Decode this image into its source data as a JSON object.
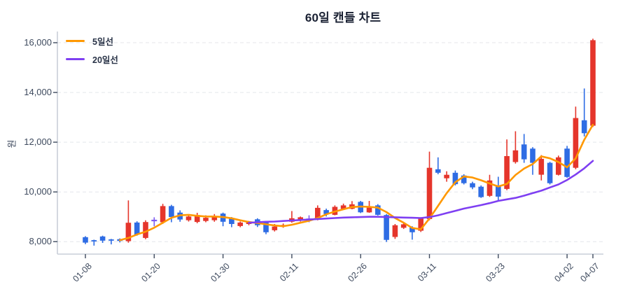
{
  "chart_data": {
    "type": "candlestick",
    "title": "60일 캔들 차트",
    "ylabel": "원",
    "grid": true,
    "legend_position": "upper-left",
    "ylim": [
      7500,
      16450
    ],
    "num_candles": 60,
    "ohlc_order": "open,high,low,close",
    "up_color": "#e5352b",
    "down_color": "#2e6ce4",
    "doji_color": "#7d5bf0",
    "axis_color": "#c9cfd9",
    "grid_color": "#e4e6ea",
    "tick_text_color": "#3e4a5e",
    "y_ticks": [
      {
        "value": 8000,
        "label": "8,000"
      },
      {
        "value": 10000,
        "label": "10,000"
      },
      {
        "value": 12000,
        "label": "12,000"
      },
      {
        "value": 14000,
        "label": "14,000"
      },
      {
        "value": 16000,
        "label": "16,000"
      }
    ],
    "x_ticks": [
      {
        "index": 0,
        "label": "01-08"
      },
      {
        "index": 8,
        "label": "01-20"
      },
      {
        "index": 16,
        "label": "01-30"
      },
      {
        "index": 24,
        "label": "02-11"
      },
      {
        "index": 32,
        "label": "02-26"
      },
      {
        "index": 40,
        "label": "03-11"
      },
      {
        "index": 48,
        "label": "03-23"
      },
      {
        "index": 56,
        "label": "04-02"
      },
      {
        "index": 59,
        "label": "04-07"
      }
    ],
    "candles": [
      [
        8180,
        8220,
        7900,
        7960
      ],
      [
        8060,
        8080,
        7840,
        8010
      ],
      [
        8210,
        8240,
        7950,
        8040
      ],
      [
        8090,
        8110,
        7890,
        8040
      ],
      [
        8100,
        8130,
        7970,
        8030
      ],
      [
        8020,
        9660,
        7960,
        8760
      ],
      [
        8770,
        8820,
        8240,
        8290
      ],
      [
        8150,
        8860,
        8100,
        8790
      ],
      [
        8850,
        8980,
        8620,
        8850
      ],
      [
        8780,
        9520,
        8720,
        9430
      ],
      [
        9430,
        9480,
        8780,
        8990
      ],
      [
        9170,
        9260,
        8800,
        8890
      ],
      [
        8860,
        9100,
        8810,
        9010
      ],
      [
        8790,
        9160,
        8740,
        9070
      ],
      [
        8830,
        9060,
        8780,
        8960
      ],
      [
        8860,
        9110,
        8800,
        9030
      ],
      [
        9130,
        9170,
        8620,
        8800
      ],
      [
        8930,
        8990,
        8580,
        8710
      ],
      [
        8630,
        8810,
        8580,
        8770
      ],
      [
        8710,
        8830,
        8660,
        8790
      ],
      [
        8900,
        8940,
        8590,
        8660
      ],
      [
        8790,
        8820,
        8300,
        8380
      ],
      [
        8460,
        8710,
        8410,
        8610
      ],
      [
        8610,
        8730,
        8560,
        8670
      ],
      [
        8800,
        9230,
        8760,
        8940
      ],
      [
        8860,
        9010,
        8810,
        8980
      ],
      [
        8900,
        9060,
        8780,
        8900
      ],
      [
        8890,
        9460,
        8860,
        9360
      ],
      [
        9270,
        9330,
        9010,
        9110
      ],
      [
        9080,
        9460,
        9060,
        9400
      ],
      [
        9320,
        9530,
        9290,
        9460
      ],
      [
        9320,
        9630,
        9300,
        9500
      ],
      [
        9600,
        9640,
        9150,
        9180
      ],
      [
        9180,
        9640,
        9160,
        9370
      ],
      [
        9460,
        9510,
        9050,
        9080
      ],
      [
        9070,
        9110,
        7990,
        8070
      ],
      [
        8190,
        8710,
        8110,
        8660
      ],
      [
        8560,
        8760,
        8510,
        8700
      ],
      [
        8570,
        8620,
        8080,
        8380
      ],
      [
        8440,
        8980,
        8390,
        8930
      ],
      [
        8910,
        11620,
        8860,
        10970
      ],
      [
        10910,
        11390,
        10710,
        10770
      ],
      [
        10550,
        10830,
        10410,
        10690
      ],
      [
        10770,
        10860,
        10260,
        10310
      ],
      [
        10660,
        10710,
        10300,
        10350
      ],
      [
        10350,
        10410,
        10110,
        10180
      ],
      [
        10210,
        10260,
        9760,
        9790
      ],
      [
        9840,
        10690,
        9800,
        10460
      ],
      [
        10260,
        10610,
        9660,
        9810
      ],
      [
        10120,
        12110,
        10070,
        11440
      ],
      [
        11200,
        12440,
        11140,
        11670
      ],
      [
        11910,
        12330,
        11170,
        11310
      ],
      [
        11740,
        11800,
        10690,
        11170
      ],
      [
        10690,
        11480,
        10460,
        11330
      ],
      [
        11170,
        11210,
        10300,
        10350
      ],
      [
        10690,
        11460,
        10660,
        11390
      ],
      [
        11740,
        11850,
        10570,
        10600
      ],
      [
        10970,
        13430,
        10910,
        12970
      ],
      [
        12880,
        14160,
        12230,
        12360
      ],
      [
        12660,
        16160,
        12610,
        16100
      ]
    ],
    "series": [
      {
        "name": "5일선",
        "type": "line",
        "color": "#ff9800",
        "start_index": 4,
        "values": [
          8060,
          8150,
          8290,
          8400,
          8560,
          8760,
          8960,
          9060,
          9080,
          9040,
          9010,
          9010,
          8990,
          8940,
          8860,
          8790,
          8750,
          8700,
          8650,
          8620,
          8680,
          8760,
          8840,
          8950,
          9100,
          9210,
          9300,
          9390,
          9410,
          9400,
          9370,
          9190,
          8950,
          8760,
          8550,
          8500,
          8930,
          9440,
          9950,
          10390,
          10620,
          10580,
          10470,
          10340,
          10220,
          10320,
          10680,
          10940,
          11120,
          11430,
          11350,
          11200,
          10990,
          11350,
          12100,
          12700
        ]
      },
      {
        "name": "20일선",
        "type": "line",
        "color": "#7e3ff2",
        "start_index": 19,
        "values": [
          8760,
          8780,
          8800,
          8810,
          8830,
          8850,
          8870,
          8890,
          8910,
          8930,
          8950,
          8970,
          8980,
          8990,
          9000,
          9000,
          8990,
          8980,
          8970,
          8960,
          8950,
          8990,
          9060,
          9150,
          9240,
          9330,
          9400,
          9470,
          9550,
          9640,
          9700,
          9760,
          9850,
          9950,
          10050,
          10180,
          10300,
          10480,
          10700,
          10950,
          11250
        ]
      }
    ]
  }
}
